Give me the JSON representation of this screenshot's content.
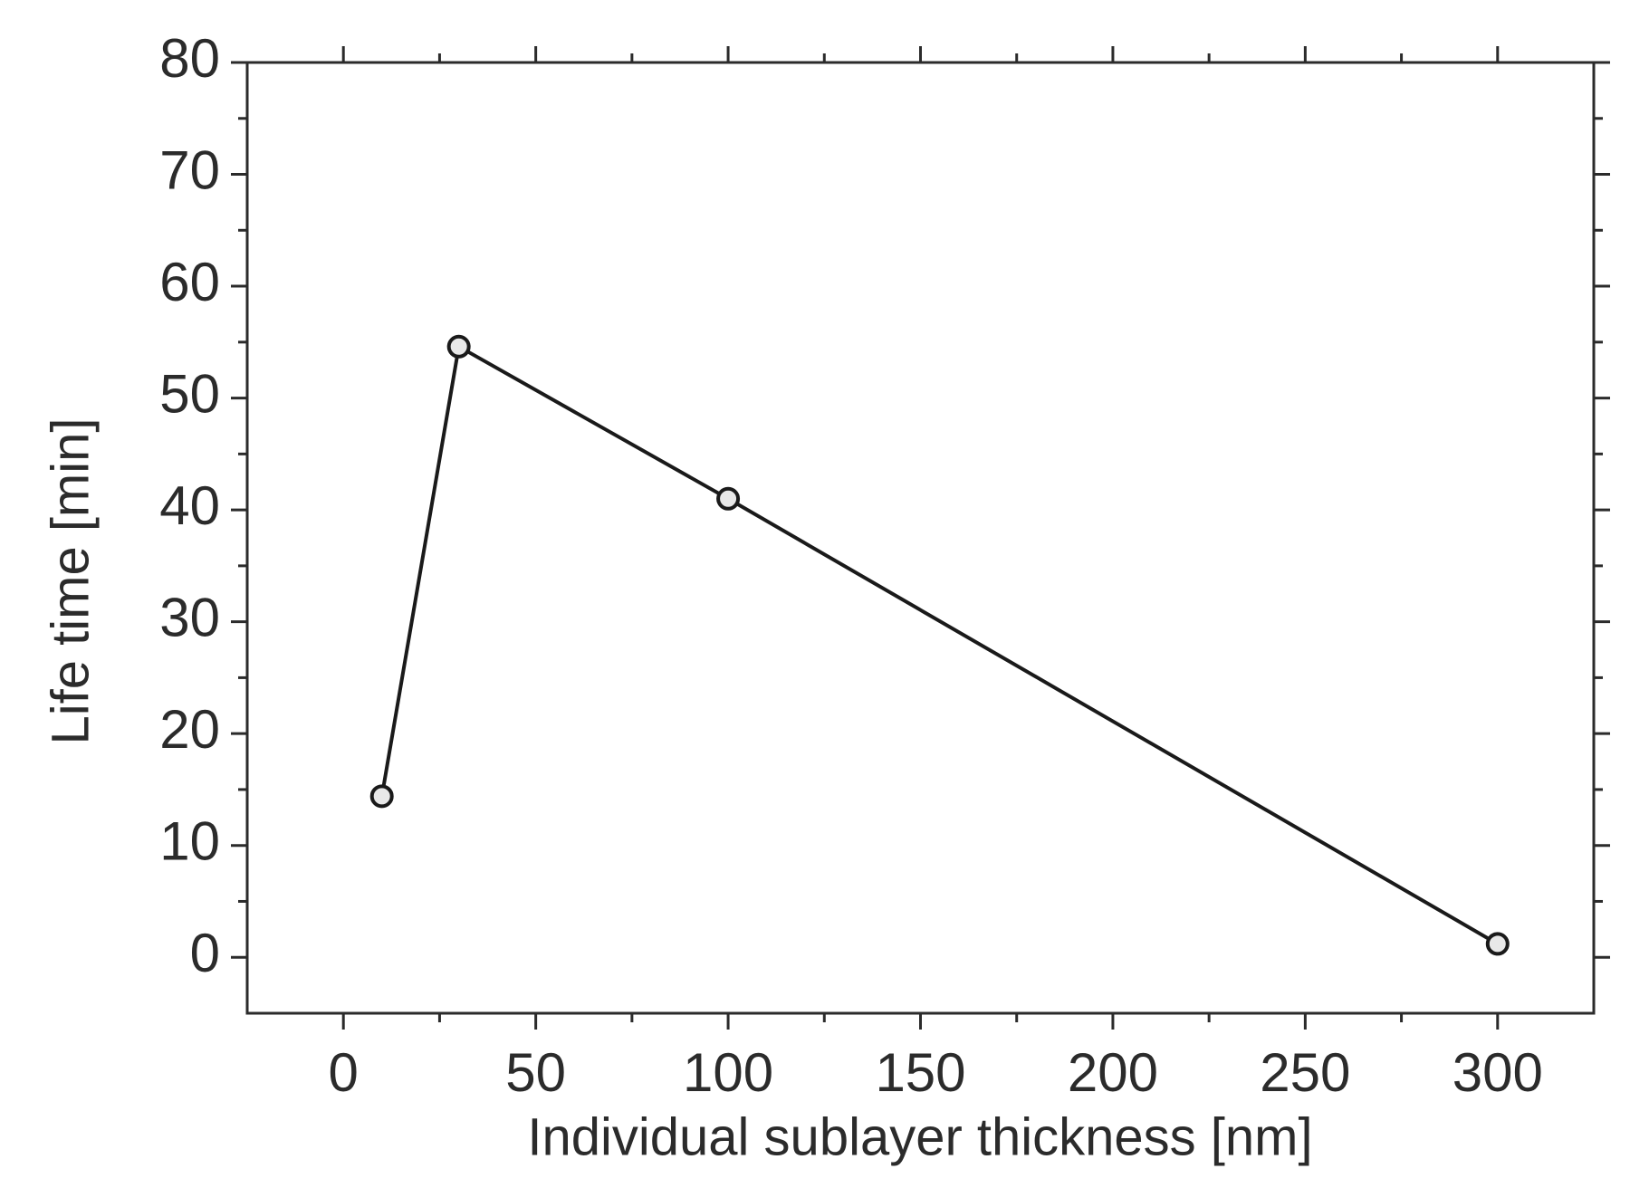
{
  "chart_data": {
    "type": "line",
    "x_label": "Individual sublayer thickness [nm]",
    "y_label": "Life time [min]",
    "x": [
      10,
      30,
      100,
      300
    ],
    "series": [
      {
        "color": "#1a1a1a",
        "values": [
          14.4,
          54.6,
          41.0,
          1.2
        ]
      }
    ],
    "xlim": [
      -25,
      325
    ],
    "ylim": [
      -5,
      80
    ],
    "xticks": [
      0,
      50,
      100,
      150,
      200,
      250,
      300
    ],
    "yticks": [
      0,
      10,
      20,
      30,
      40,
      50,
      60,
      70,
      80
    ],
    "marker": "open-circle"
  }
}
